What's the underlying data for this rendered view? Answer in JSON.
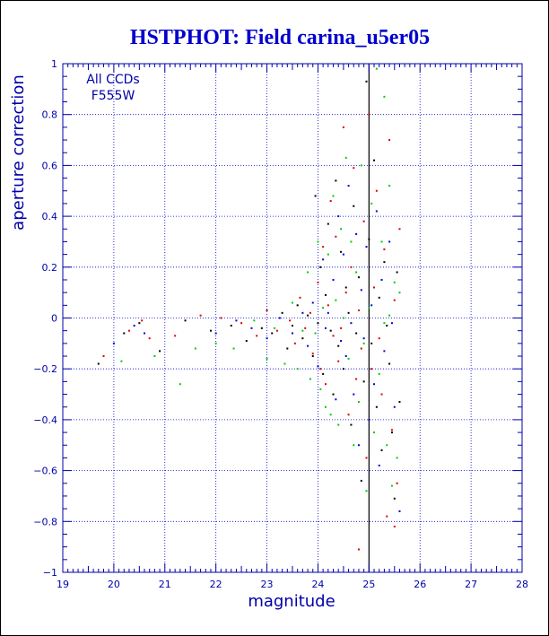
{
  "chart_data": {
    "type": "scatter",
    "title": "HSTPHOT: Field carina_u5er05",
    "xlabel": "magnitude",
    "ylabel": "aperture correction",
    "xlim": [
      19,
      28
    ],
    "ylim": [
      -1,
      1
    ],
    "x_ticks": [
      19,
      20,
      21,
      22,
      23,
      24,
      25,
      26,
      27,
      28
    ],
    "y_ticks": [
      -1,
      -0.8,
      -0.6,
      -0.4,
      -0.2,
      0,
      0.2,
      0.4,
      0.6,
      0.8,
      1
    ],
    "grid": true,
    "annotations": [
      "All CCDs",
      "F555W"
    ],
    "colors": {
      "axis": "#0000aa",
      "grid": "#0000cc",
      "title": "#0000cc",
      "vline": "#000000"
    },
    "reference_line_x": 25,
    "series": [
      {
        "color": "#000000",
        "points": [
          [
            19.7,
            -0.18
          ],
          [
            20.2,
            -0.06
          ],
          [
            20.5,
            -0.02
          ],
          [
            20.9,
            -0.13
          ],
          [
            21.4,
            -0.01
          ],
          [
            21.9,
            -0.05
          ],
          [
            22.3,
            -0.03
          ],
          [
            22.6,
            -0.09
          ],
          [
            22.9,
            -0.04
          ],
          [
            23.1,
            -0.06
          ],
          [
            23.3,
            0.02
          ],
          [
            23.4,
            -0.12
          ],
          [
            23.5,
            -0.03
          ],
          [
            23.6,
            0.05
          ],
          [
            23.7,
            -0.08
          ],
          [
            23.8,
            0.01
          ],
          [
            23.9,
            -0.15
          ],
          [
            23.95,
            0.48
          ],
          [
            24.0,
            -0.02
          ],
          [
            24.05,
            0.2
          ],
          [
            24.1,
            -0.22
          ],
          [
            24.15,
            0.09
          ],
          [
            24.2,
            0.37
          ],
          [
            24.25,
            -0.05
          ],
          [
            24.3,
            -0.3
          ],
          [
            24.35,
            0.54
          ],
          [
            24.4,
            -0.11
          ],
          [
            24.45,
            0.26
          ],
          [
            24.5,
            -0.2
          ],
          [
            24.55,
            0.12
          ],
          [
            24.6,
            0.02
          ],
          [
            24.65,
            -0.42
          ],
          [
            24.7,
            0.44
          ],
          [
            24.75,
            -0.06
          ],
          [
            24.8,
            0.16
          ],
          [
            24.85,
            -0.64
          ],
          [
            24.9,
            -0.25
          ],
          [
            24.95,
            0.93
          ],
          [
            25.0,
            0.31
          ],
          [
            25.05,
            -0.1
          ],
          [
            25.1,
            0.62
          ],
          [
            25.15,
            -0.35
          ],
          [
            25.2,
            0.08
          ],
          [
            25.25,
            -0.52
          ],
          [
            25.3,
            0.22
          ],
          [
            25.35,
            -0.03
          ],
          [
            25.4,
            -0.18
          ],
          [
            25.45,
            -0.45
          ],
          [
            25.5,
            -0.71
          ],
          [
            25.55,
            0.18
          ],
          [
            25.6,
            -0.33
          ]
        ]
      },
      {
        "color": "#dd0000",
        "points": [
          [
            19.8,
            -0.15
          ],
          [
            20.3,
            -0.05
          ],
          [
            20.55,
            -0.01
          ],
          [
            20.7,
            -0.08
          ],
          [
            21.2,
            -0.07
          ],
          [
            21.7,
            0.01
          ],
          [
            22.1,
            0.0
          ],
          [
            22.5,
            -0.02
          ],
          [
            22.8,
            -0.07
          ],
          [
            23.0,
            0.03
          ],
          [
            23.2,
            -0.05
          ],
          [
            23.45,
            -0.01
          ],
          [
            23.55,
            -0.1
          ],
          [
            23.65,
            0.08
          ],
          [
            23.75,
            -0.04
          ],
          [
            23.85,
            0.02
          ],
          [
            23.9,
            -0.14
          ],
          [
            24.0,
            0.14
          ],
          [
            24.05,
            -0.2
          ],
          [
            24.1,
            0.28
          ],
          [
            24.15,
            -0.26
          ],
          [
            24.2,
            0.05
          ],
          [
            24.25,
            0.46
          ],
          [
            24.3,
            -0.07
          ],
          [
            24.35,
            0.32
          ],
          [
            24.4,
            -0.17
          ],
          [
            24.45,
            -0.04
          ],
          [
            24.5,
            0.75
          ],
          [
            24.55,
            0.1
          ],
          [
            24.6,
            -0.38
          ],
          [
            24.65,
            0.2
          ],
          [
            24.7,
            0.59
          ],
          [
            24.75,
            -0.24
          ],
          [
            24.8,
            0.03
          ],
          [
            24.85,
            -0.12
          ],
          [
            24.9,
            0.38
          ],
          [
            24.95,
            -0.55
          ],
          [
            25.0,
            0.8
          ],
          [
            25.05,
            -0.2
          ],
          [
            25.1,
            0.12
          ],
          [
            25.15,
            0.5
          ],
          [
            25.2,
            -0.08
          ],
          [
            25.25,
            -0.3
          ],
          [
            25.3,
            0.27
          ],
          [
            25.35,
            -0.78
          ],
          [
            25.4,
            0.7
          ],
          [
            25.45,
            -0.44
          ],
          [
            25.5,
            0.07
          ],
          [
            25.55,
            -0.65
          ],
          [
            25.6,
            0.35
          ],
          [
            24.8,
            -0.91
          ],
          [
            25.5,
            -0.82
          ]
        ]
      },
      {
        "color": "#0000dd",
        "points": [
          [
            20.0,
            -0.1
          ],
          [
            20.4,
            -0.03
          ],
          [
            20.6,
            -0.06
          ],
          [
            22.0,
            -0.06
          ],
          [
            22.4,
            -0.01
          ],
          [
            22.7,
            -0.04
          ],
          [
            23.0,
            -0.08
          ],
          [
            23.25,
            0.0
          ],
          [
            23.5,
            -0.06
          ],
          [
            23.7,
            0.02
          ],
          [
            23.8,
            -0.11
          ],
          [
            23.9,
            0.06
          ],
          [
            24.0,
            -0.19
          ],
          [
            24.1,
            0.23
          ],
          [
            24.15,
            -0.04
          ],
          [
            24.2,
            0.02
          ],
          [
            24.3,
            0.15
          ],
          [
            24.35,
            -0.32
          ],
          [
            24.4,
            0.4
          ],
          [
            24.45,
            -0.09
          ],
          [
            24.5,
            0.25
          ],
          [
            24.55,
            -0.15
          ],
          [
            24.6,
            0.52
          ],
          [
            24.65,
            -0.02
          ],
          [
            24.7,
            -0.3
          ],
          [
            24.75,
            0.33
          ],
          [
            24.8,
            -0.5
          ],
          [
            24.85,
            0.11
          ],
          [
            24.9,
            -0.08
          ],
          [
            24.95,
            0.28
          ],
          [
            25.0,
            -0.4
          ],
          [
            25.05,
            0.05
          ],
          [
            25.1,
            -0.26
          ],
          [
            25.15,
            0.42
          ],
          [
            25.2,
            -0.58
          ],
          [
            25.25,
            0.15
          ],
          [
            25.3,
            -0.13
          ],
          [
            25.4,
            0.3
          ],
          [
            25.45,
            -0.02
          ],
          [
            25.5,
            -0.35
          ],
          [
            25.6,
            -0.76
          ]
        ]
      },
      {
        "color": "#00cc00",
        "points": [
          [
            20.15,
            -0.17
          ],
          [
            20.8,
            -0.15
          ],
          [
            21.3,
            -0.26
          ],
          [
            21.6,
            -0.12
          ],
          [
            22.0,
            -0.1
          ],
          [
            22.35,
            -0.12
          ],
          [
            22.75,
            -0.01
          ],
          [
            23.0,
            -0.16
          ],
          [
            23.15,
            -0.04
          ],
          [
            23.35,
            -0.18
          ],
          [
            23.5,
            0.06
          ],
          [
            23.6,
            -0.2
          ],
          [
            23.7,
            -0.05
          ],
          [
            23.8,
            0.18
          ],
          [
            23.85,
            -0.24
          ],
          [
            23.95,
            -0.06
          ],
          [
            24.0,
            0.3
          ],
          [
            24.05,
            -0.28
          ],
          [
            24.1,
            0.04
          ],
          [
            24.15,
            -0.35
          ],
          [
            24.2,
            0.25
          ],
          [
            24.25,
            -0.38
          ],
          [
            24.3,
            0.48
          ],
          [
            24.35,
            0.07
          ],
          [
            24.4,
            -0.42
          ],
          [
            24.45,
            0.35
          ],
          [
            24.5,
            0.0
          ],
          [
            24.55,
            0.63
          ],
          [
            24.6,
            -0.16
          ],
          [
            24.65,
            0.3
          ],
          [
            24.7,
            -0.5
          ],
          [
            24.75,
            0.18
          ],
          [
            24.8,
            -0.33
          ],
          [
            24.85,
            0.6
          ],
          [
            24.9,
            -0.1
          ],
          [
            24.95,
            -0.68
          ],
          [
            25.0,
            0.04
          ],
          [
            25.05,
            0.45
          ],
          [
            25.1,
            -0.45
          ],
          [
            25.15,
            0.98
          ],
          [
            25.2,
            -0.22
          ],
          [
            25.25,
            0.3
          ],
          [
            25.3,
            0.87
          ],
          [
            25.35,
            -0.5
          ],
          [
            25.4,
            0.52
          ],
          [
            25.45,
            -0.66
          ],
          [
            25.5,
            0.14
          ],
          [
            25.55,
            -0.55
          ],
          [
            25.6,
            0.1
          ],
          [
            25.4,
            0.01
          ],
          [
            25.3,
            -0.02
          ]
        ]
      }
    ]
  }
}
